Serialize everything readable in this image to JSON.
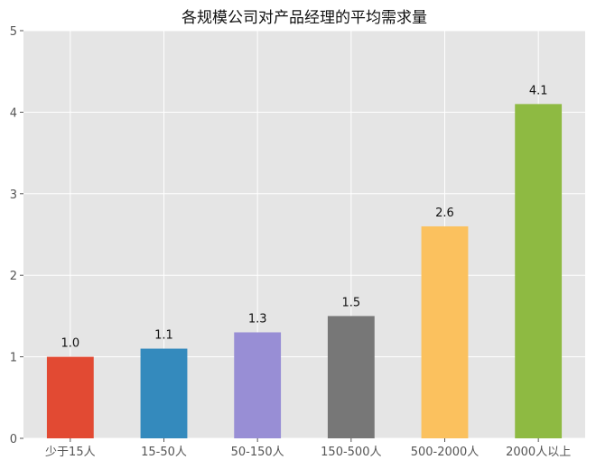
{
  "chart_data": {
    "type": "bar",
    "title": "各规模公司对产品经理的平均需求量",
    "xlabel": "",
    "ylabel": "",
    "categories": [
      "少于15人",
      "15-50人",
      "50-150人",
      "150-500人",
      "500-2000人",
      "2000人以上"
    ],
    "values": [
      1.0,
      1.1,
      1.3,
      1.5,
      2.6,
      4.1
    ],
    "value_labels": [
      "1.0",
      "1.1",
      "1.3",
      "1.5",
      "2.6",
      "4.1"
    ],
    "colors": [
      "#E24A33",
      "#348ABD",
      "#988ED5",
      "#777777",
      "#FBC15E",
      "#8EBA42"
    ],
    "ylim": [
      0,
      5
    ],
    "yticks": [
      0,
      1,
      2,
      3,
      4,
      5
    ],
    "ytick_labels": [
      "0",
      "1",
      "2",
      "3",
      "4",
      "5"
    ],
    "grid": true,
    "background": "#E5E5E5",
    "grid_color": "#FFFFFF",
    "legend": "none"
  }
}
